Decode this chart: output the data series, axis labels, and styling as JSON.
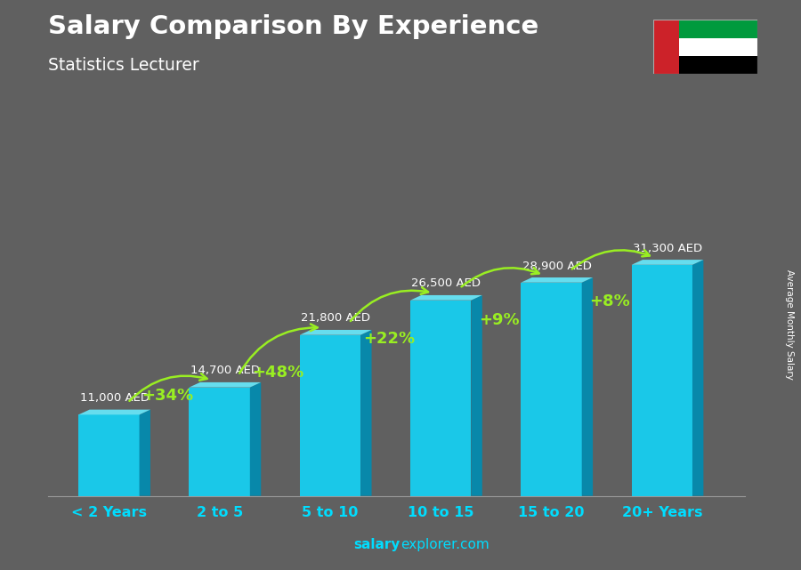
{
  "title": "Salary Comparison By Experience",
  "subtitle": "Statistics Lecturer",
  "categories": [
    "< 2 Years",
    "2 to 5",
    "5 to 10",
    "10 to 15",
    "15 to 20",
    "20+ Years"
  ],
  "values": [
    11000,
    14700,
    21800,
    26500,
    28900,
    31300
  ],
  "labels": [
    "11,000 AED",
    "14,700 AED",
    "21,800 AED",
    "26,500 AED",
    "28,900 AED",
    "31,300 AED"
  ],
  "pct_labels": [
    "+34%",
    "+48%",
    "+22%",
    "+9%",
    "+8%"
  ],
  "bar_face_color": "#1ac8e8",
  "bar_top_color": "#66ddee",
  "bar_side_color": "#0888aa",
  "bg_color": "#606060",
  "title_color": "#ffffff",
  "subtitle_color": "#ffffff",
  "label_color": "#ffffff",
  "pct_color": "#99ee22",
  "xtick_color": "#00ddff",
  "footer_salary_color": "#00ddff",
  "footer_rest_color": "#00ddff",
  "ylabel_text": "Average Monthly Salary",
  "figsize": [
    9.0,
    6.41
  ],
  "dpi": 100
}
